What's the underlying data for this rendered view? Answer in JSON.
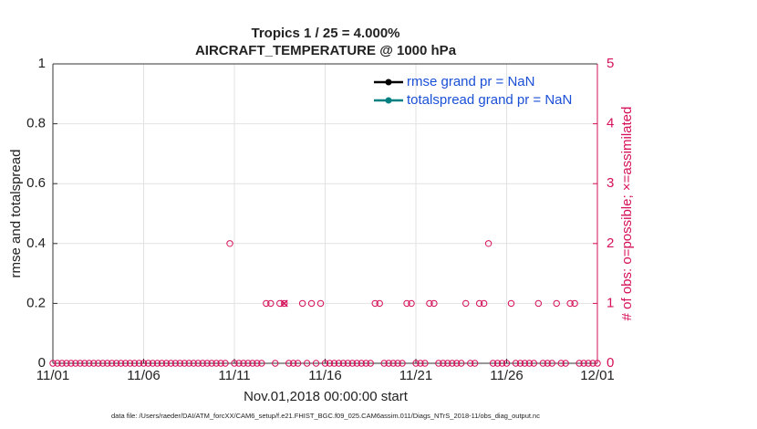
{
  "chart_data": {
    "type": "line",
    "title": "Tropics 1 / 25 = 4.000%",
    "subtitle": "AIRCRAFT_TEMPERATURE @ 1000 hPa",
    "xlabel": "Nov.01,2018 00:00:00 start",
    "ylabel": "rmse and totalspread",
    "y2label": "# of obs: o=possible; ×=assimilated",
    "footnote": "data file: /Users/raeder/DAI/ATM_forcXX/CAM6_setup/f.e21.FHIST_BGC.f09_025.CAM6assim.011/Diags_NTrS_2018-11/obs_diag_output.nc",
    "xlim": [
      0,
      30
    ],
    "xticks": [
      {
        "value": 0,
        "label": "11/01"
      },
      {
        "value": 5,
        "label": "11/06"
      },
      {
        "value": 10,
        "label": "11/11"
      },
      {
        "value": 15,
        "label": "11/16"
      },
      {
        "value": 20,
        "label": "11/21"
      },
      {
        "value": 25,
        "label": "11/26"
      },
      {
        "value": 30,
        "label": "12/01"
      }
    ],
    "ylim": [
      0,
      1
    ],
    "yticks": [
      0,
      0.2,
      0.4,
      0.6,
      0.8,
      1
    ],
    "y2lim": [
      0,
      5
    ],
    "y2ticks": [
      0,
      1,
      2,
      3,
      4,
      5
    ],
    "grid": true,
    "legend": "upper-right",
    "series": [
      {
        "name": "rmse grand pr = NaN",
        "color": "#000000"
      },
      {
        "name": "totalspread grand pr = NaN",
        "color": "#008080"
      }
    ],
    "observations": {
      "axis": "y2",
      "color": "#d6105a",
      "x": [
        0,
        0.25,
        0.5,
        0.75,
        1,
        1.25,
        1.5,
        1.75,
        2,
        2.25,
        2.5,
        2.75,
        3,
        3.25,
        3.5,
        3.75,
        4,
        4.25,
        4.5,
        4.75,
        5,
        5.25,
        5.5,
        5.75,
        6,
        6.25,
        6.5,
        6.75,
        7,
        7.25,
        7.5,
        7.75,
        8,
        8.25,
        8.5,
        8.75,
        9,
        9.25,
        9.5,
        9.75,
        10,
        10.25,
        10.5,
        10.75,
        11,
        11.25,
        11.5,
        11.75,
        12,
        12.25,
        12.5,
        12.75,
        13,
        13.25,
        13.5,
        13.75,
        14,
        14.25,
        14.5,
        14.75,
        15,
        15.25,
        15.5,
        15.75,
        16,
        16.25,
        16.5,
        16.75,
        17,
        17.25,
        17.5,
        17.75,
        18,
        18.25,
        18.5,
        18.75,
        19,
        19.25,
        19.5,
        19.75,
        20,
        20.25,
        20.5,
        20.75,
        21,
        21.25,
        21.5,
        21.75,
        22,
        22.25,
        22.5,
        22.75,
        23,
        23.25,
        23.5,
        23.75,
        24,
        24.25,
        24.5,
        24.75,
        25,
        25.25,
        25.5,
        25.75,
        26,
        26.25,
        26.5,
        26.75,
        27,
        27.25,
        27.5,
        27.75,
        28,
        28.25,
        28.5,
        28.75,
        29,
        29.25,
        29.5,
        29.75,
        30
      ],
      "values": [
        0,
        0,
        0,
        0,
        0,
        0,
        0,
        0,
        0,
        0,
        0,
        0,
        0,
        0,
        0,
        0,
        0,
        0,
        0,
        0,
        0,
        0,
        0,
        0,
        0,
        0,
        0,
        0,
        0,
        0,
        0,
        0,
        0,
        0,
        0,
        0,
        0,
        0,
        0,
        2,
        0,
        0,
        0,
        0,
        0,
        0,
        0,
        1,
        1,
        0,
        1,
        1,
        0,
        0,
        0,
        1,
        0,
        1,
        0,
        1,
        0,
        0,
        0,
        0,
        0,
        0,
        0,
        0,
        0,
        0,
        0,
        1,
        1,
        0,
        0,
        0,
        0,
        0,
        1,
        1,
        0,
        0,
        0,
        1,
        1,
        0,
        0,
        0,
        0,
        0,
        0,
        1,
        0,
        0,
        1,
        1,
        2,
        0,
        0,
        0,
        0,
        1,
        0,
        0,
        0,
        0,
        0,
        1,
        0,
        0,
        0,
        1,
        0,
        0,
        1,
        1,
        0,
        0,
        0,
        0,
        0
      ]
    },
    "assimilated": {
      "axis": "y2",
      "color": "#d6105a",
      "x": [
        12.75
      ],
      "values": [
        1
      ]
    }
  }
}
